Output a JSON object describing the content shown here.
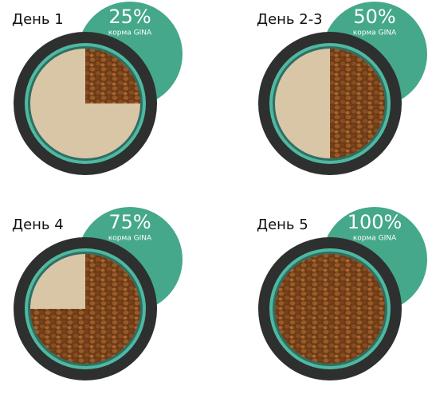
{
  "panels": [
    {
      "label": "День 1",
      "share": {
        "value": 25,
        "label": "25%"
      },
      "caption": "корма GINA"
    },
    {
      "label": "День 2-3",
      "share": {
        "value": 50,
        "label": "50%"
      },
      "caption": "корма GINA"
    },
    {
      "label": "День 4",
      "share": {
        "value": 75,
        "label": "75%"
      },
      "caption": "корма GINA"
    },
    {
      "label": "День 5",
      "share": {
        "value": 100,
        "label": "100%"
      },
      "caption": "корма GINA"
    }
  ]
}
